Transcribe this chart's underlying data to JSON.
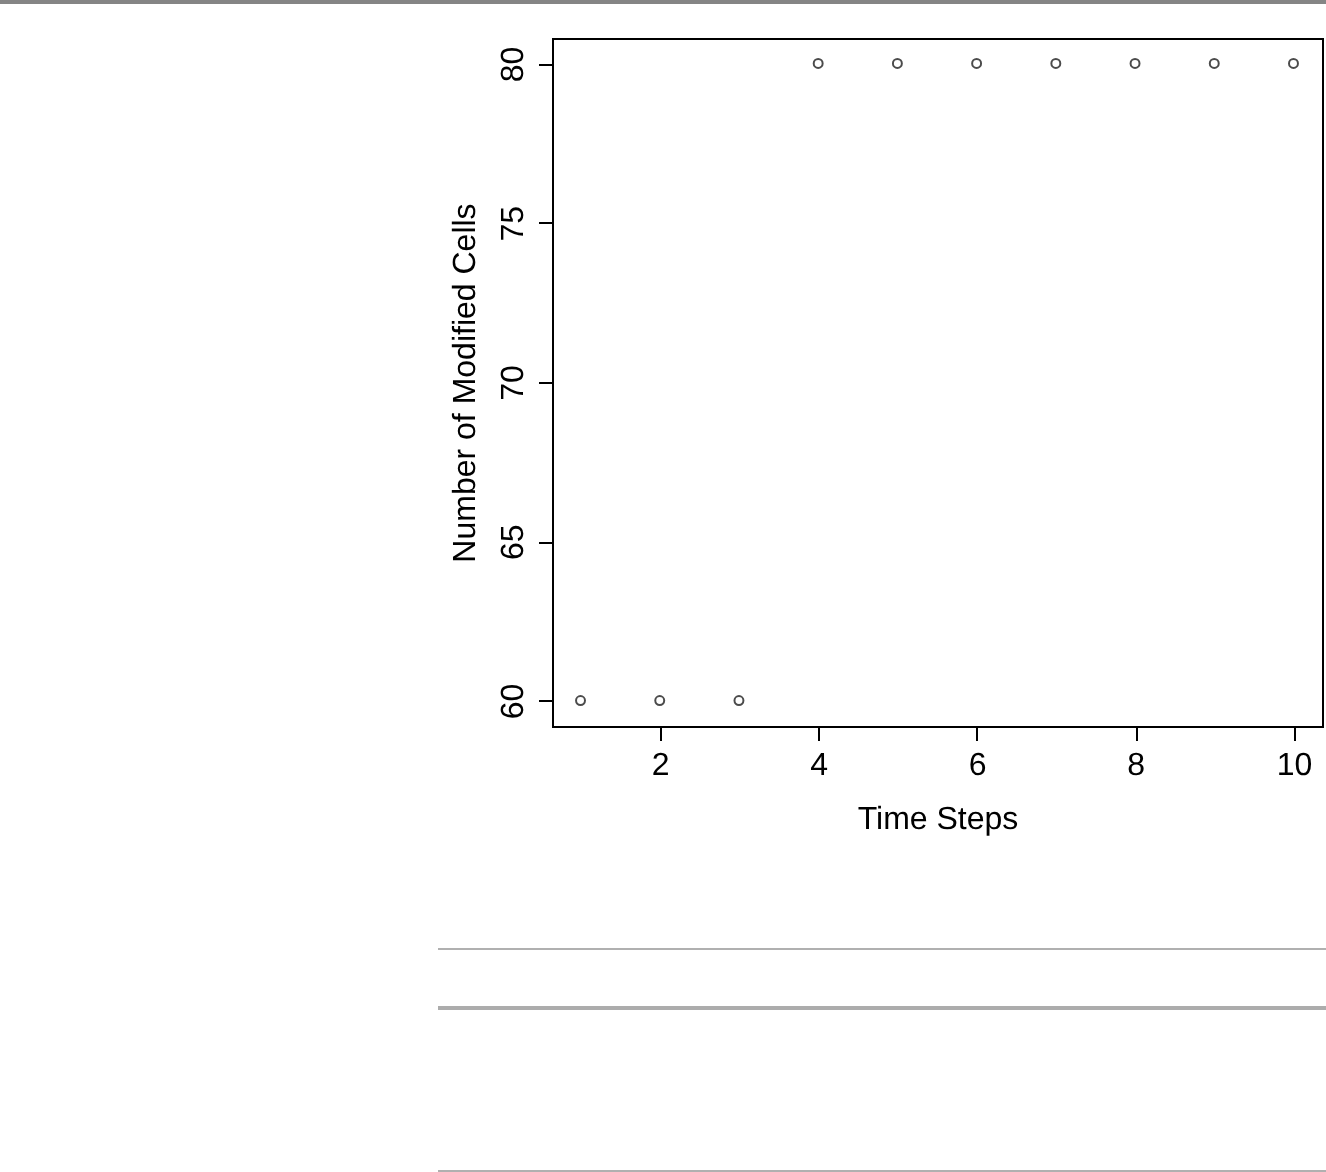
{
  "chart_data": {
    "type": "scatter",
    "xlabel": "Time Steps",
    "ylabel": "Number of Modified Cells",
    "x": [
      1,
      2,
      3,
      4,
      5,
      6,
      7,
      8,
      9,
      10
    ],
    "values": [
      60,
      60,
      60,
      80,
      80,
      80,
      80,
      80,
      80,
      80
    ],
    "color": "#000000",
    "marker": "circle",
    "xlim": [
      0.64,
      10.36
    ],
    "ylim": [
      59.2,
      80.8
    ],
    "xticks": [
      2,
      4,
      6,
      8,
      10
    ],
    "yticks": [
      60,
      65,
      70,
      75,
      80
    ]
  }
}
